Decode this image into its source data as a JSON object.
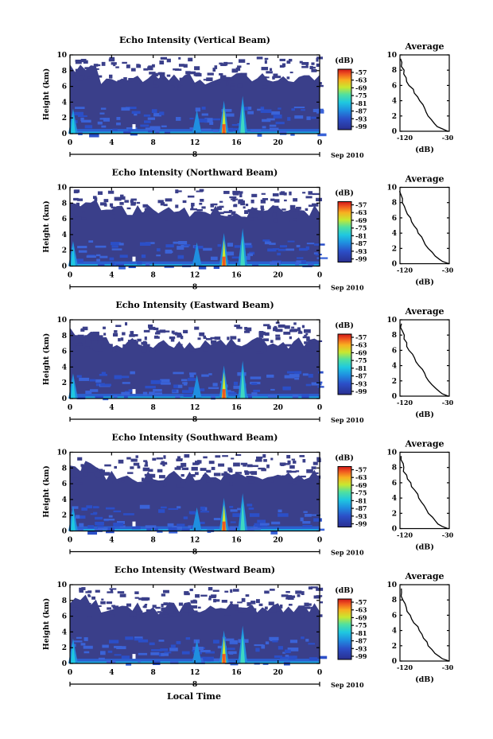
{
  "figure": {
    "date_label": "Sep 2010",
    "day_label": "8",
    "xaxis_label": "Local Time"
  },
  "chart_data": [
    {
      "type": "heatmap",
      "title": "Echo Intensity (Vertical Beam)",
      "ylabel": "Height (km)",
      "x_ticks": [
        "0",
        "4",
        "8",
        "12",
        "16",
        "20",
        "0"
      ],
      "y_ticks": [
        "0",
        "2",
        "4",
        "6",
        "8",
        "10"
      ],
      "xlim": [
        0,
        24
      ],
      "ylim": [
        0,
        10
      ],
      "colorbar_label": "(dB)",
      "colorbar_ticks": [
        "-57",
        "-63",
        "-69",
        "-75",
        "-81",
        "-87",
        "-93",
        "-99"
      ],
      "profile": {
        "title": "Average",
        "xlabel": "(dB)",
        "x_ticks": [
          "-120",
          "-30"
        ],
        "y_ticks": [
          "0",
          "2",
          "4",
          "6",
          "8",
          "10"
        ],
        "xlim": [
          -120,
          -30
        ],
        "ylim": [
          0,
          10
        ]
      }
    },
    {
      "type": "heatmap",
      "title": "Echo Intensity (Northward Beam)",
      "ylabel": "Height (km)",
      "x_ticks": [
        "0",
        "4",
        "8",
        "12",
        "16",
        "20",
        "0"
      ],
      "y_ticks": [
        "0",
        "2",
        "4",
        "6",
        "8",
        "10"
      ],
      "xlim": [
        0,
        24
      ],
      "ylim": [
        0,
        10
      ],
      "colorbar_label": "(dB)",
      "colorbar_ticks": [
        "-57",
        "-63",
        "-69",
        "-75",
        "-81",
        "-87",
        "-93",
        "-99"
      ],
      "profile": {
        "title": "Average",
        "xlabel": "(dB)",
        "x_ticks": [
          "-120",
          "-30"
        ],
        "y_ticks": [
          "0",
          "2",
          "4",
          "6",
          "8",
          "10"
        ],
        "xlim": [
          -120,
          -30
        ],
        "ylim": [
          0,
          10
        ]
      }
    },
    {
      "type": "heatmap",
      "title": "Echo Intensity (Eastward Beam)",
      "ylabel": "Height (km)",
      "x_ticks": [
        "0",
        "4",
        "8",
        "12",
        "16",
        "20",
        "0"
      ],
      "y_ticks": [
        "0",
        "2",
        "4",
        "6",
        "8",
        "10"
      ],
      "xlim": [
        0,
        24
      ],
      "ylim": [
        0,
        10
      ],
      "colorbar_label": "(dB)",
      "colorbar_ticks": [
        "-57",
        "-63",
        "-69",
        "-75",
        "-81",
        "-87",
        "-93",
        "-99"
      ],
      "profile": {
        "title": "Average",
        "xlabel": "(dB)",
        "x_ticks": [
          "-120",
          "-30"
        ],
        "y_ticks": [
          "0",
          "2",
          "4",
          "6",
          "8",
          "10"
        ],
        "xlim": [
          -120,
          -30
        ],
        "ylim": [
          0,
          10
        ]
      }
    },
    {
      "type": "heatmap",
      "title": "Echo Intensity (Southward Beam)",
      "ylabel": "Height (km)",
      "x_ticks": [
        "0",
        "4",
        "8",
        "12",
        "16",
        "20",
        "0"
      ],
      "y_ticks": [
        "0",
        "2",
        "4",
        "6",
        "8",
        "10"
      ],
      "xlim": [
        0,
        24
      ],
      "ylim": [
        0,
        10
      ],
      "colorbar_label": "(dB)",
      "colorbar_ticks": [
        "-57",
        "-63",
        "-69",
        "-75",
        "-81",
        "-87",
        "-93",
        "-99"
      ],
      "profile": {
        "title": "Average",
        "xlabel": "(dB)",
        "x_ticks": [
          "-120",
          "-30"
        ],
        "y_ticks": [
          "0",
          "2",
          "4",
          "6",
          "8",
          "10"
        ],
        "xlim": [
          -120,
          -30
        ],
        "ylim": [
          0,
          10
        ]
      }
    },
    {
      "type": "heatmap",
      "title": "Echo Intensity (Westward Beam)",
      "ylabel": "Height (km)",
      "x_ticks": [
        "0",
        "4",
        "8",
        "12",
        "16",
        "20",
        "0"
      ],
      "y_ticks": [
        "0",
        "2",
        "4",
        "6",
        "8",
        "10"
      ],
      "xlim": [
        0,
        24
      ],
      "ylim": [
        0,
        10
      ],
      "colorbar_label": "(dB)",
      "colorbar_ticks": [
        "-57",
        "-63",
        "-69",
        "-75",
        "-81",
        "-87",
        "-93",
        "-99"
      ],
      "profile": {
        "title": "Average",
        "xlabel": "(dB)",
        "x_ticks": [
          "-120",
          "-30"
        ],
        "y_ticks": [
          "0",
          "2",
          "4",
          "6",
          "8",
          "10"
        ],
        "xlim": [
          -120,
          -30
        ],
        "ylim": [
          0,
          10
        ]
      }
    }
  ],
  "average_profile_shape": {
    "height_km": [
      0,
      0.3,
      0.6,
      1.0,
      1.5,
      2.0,
      2.5,
      3.0,
      3.5,
      4.0,
      4.5,
      5.0,
      5.5,
      6.0,
      6.5,
      7.0,
      7.5,
      8.0,
      8.5,
      9.0,
      9.5
    ],
    "db": [
      -32,
      -42,
      -50,
      -56,
      -62,
      -67,
      -72,
      -76,
      -80,
      -85,
      -89,
      -93,
      -97,
      -102,
      -106,
      -109,
      -112,
      -114,
      -116,
      -118,
      -119
    ]
  },
  "colors": {
    "background_echo": "#3a3f8a",
    "colormap": [
      "#2a2f8f",
      "#2b4fc8",
      "#1f7fe0",
      "#1fb8e8",
      "#3fd8c0",
      "#7fe070",
      "#d8e830",
      "#f8b020",
      "#f06020",
      "#d01818"
    ]
  }
}
